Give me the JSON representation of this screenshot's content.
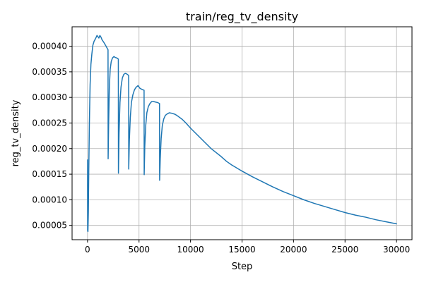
{
  "chart_data": {
    "type": "line",
    "title": "train/reg_tv_density",
    "xlabel": "Step",
    "ylabel": "reg_tv_density",
    "xlim": [
      -1500,
      31500
    ],
    "ylim": [
      2.2e-05,
      0.000438
    ],
    "grid": true,
    "x_ticks": [
      0,
      5000,
      10000,
      15000,
      20000,
      25000,
      30000
    ],
    "x_tick_labels": [
      "0",
      "5000",
      "10000",
      "15000",
      "20000",
      "25000",
      "30000"
    ],
    "y_ticks": [
      5e-05,
      0.0001,
      0.00015,
      0.0002,
      0.00025,
      0.0003,
      0.00035,
      0.0004
    ],
    "y_tick_labels": [
      "0.00005",
      "0.00010",
      "0.00015",
      "0.00020",
      "0.00025",
      "0.00030",
      "0.00035",
      "0.00040"
    ],
    "colors": {
      "line": "#1f77b4",
      "grid": "#b0b0b0",
      "axes": "#000000"
    },
    "series": [
      {
        "name": "",
        "x": [
          0,
          10,
          40,
          80,
          120,
          180,
          250,
          330,
          420,
          520,
          640,
          780,
          920,
          1000,
          1100,
          1200,
          1300,
          1400,
          1600,
          1800,
          1990,
          2000,
          2050,
          2120,
          2200,
          2300,
          2420,
          2560,
          2700,
          2850,
          2990,
          3000,
          3060,
          3150,
          3250,
          3380,
          3520,
          3660,
          3800,
          3990,
          4000,
          4060,
          4150,
          4260,
          4400,
          4560,
          4720,
          4900,
          5080,
          5250,
          5490,
          5500,
          5560,
          5650,
          5760,
          5900,
          6060,
          6230,
          6400,
          6600,
          6800,
          6990,
          7000,
          7060,
          7150,
          7260,
          7400,
          7560,
          7750,
          7950,
          8200,
          8500,
          8800,
          9200,
          9600,
          10000,
          10500,
          11000,
          11500,
          12000,
          12500,
          13000,
          13500,
          14000,
          15000,
          16000,
          17000,
          18000,
          19000,
          20000,
          21000,
          22000,
          23000,
          24000,
          25000,
          26000,
          27000,
          28000,
          29000,
          30000
        ],
        "y": [
          0.000178,
          4e-05,
          3.8e-05,
          7.5e-05,
          0.000155,
          0.00025,
          0.000325,
          0.000365,
          0.000385,
          0.000402,
          0.00041,
          0.000415,
          0.000421,
          0.000419,
          0.000416,
          0.000421,
          0.000418,
          0.000413,
          0.000407,
          0.0004,
          0.000393,
          0.00018,
          0.00025,
          0.00032,
          0.000355,
          0.00037,
          0.000377,
          0.00038,
          0.000378,
          0.000377,
          0.000375,
          0.000152,
          0.00023,
          0.00029,
          0.00032,
          0.000338,
          0.000345,
          0.000347,
          0.000346,
          0.000343,
          0.00016,
          0.000215,
          0.00026,
          0.00029,
          0.000305,
          0.000315,
          0.00032,
          0.000323,
          0.000318,
          0.000316,
          0.000314,
          0.000149,
          0.000205,
          0.000245,
          0.00027,
          0.000282,
          0.000288,
          0.000292,
          0.000292,
          0.000291,
          0.00029,
          0.000288,
          0.000138,
          0.00018,
          0.00022,
          0.000245,
          0.000258,
          0.000265,
          0.000268,
          0.00027,
          0.000269,
          0.000267,
          0.000263,
          0.000257,
          0.000249,
          0.00024,
          0.00023,
          0.00022,
          0.00021,
          0.0002,
          0.000192,
          0.000184,
          0.000175,
          0.000168,
          0.000156,
          0.000145,
          0.000135,
          0.000125,
          0.000116,
          0.000108,
          0.0001,
          9.3e-05,
          8.7e-05,
          8.1e-05,
          7.5e-05,
          7e-05,
          6.6e-05,
          6.1e-05,
          5.7e-05,
          5.3e-05
        ]
      }
    ]
  }
}
